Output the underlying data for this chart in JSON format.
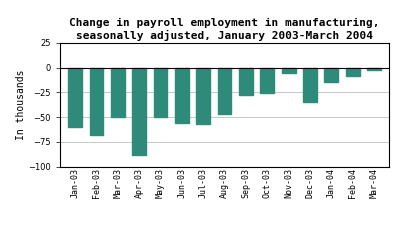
{
  "categories": [
    "Jan-03",
    "Feb-03",
    "Mar-03",
    "Apr-03",
    "May-03",
    "Jun-03",
    "Jul-03",
    "Aug-03",
    "Sep-03",
    "Oct-03",
    "Nov-03",
    "Dec-03",
    "Jan-04",
    "Feb-04",
    "Mar-04"
  ],
  "values": [
    -60,
    -68,
    -50,
    -88,
    -50,
    -56,
    -57,
    -47,
    -28,
    -26,
    -5,
    -35,
    -15,
    -8,
    -2
  ],
  "bar_color": "#2e8b7a",
  "title_line1": "Change in payroll employment in manufacturing,",
  "title_line2": "seasonally adjusted, January 2003-March 2004",
  "ylabel": "In thousands",
  "ylim": [
    -100,
    25
  ],
  "yticks": [
    -100,
    -75,
    -50,
    -25,
    0,
    25
  ],
  "title_fontsize": 8.0,
  "axis_fontsize": 7.0,
  "tick_fontsize": 6.0,
  "ylabel_fontsize": 7.0,
  "background_color": "#ffffff",
  "grid_color": "#b0b0b0"
}
